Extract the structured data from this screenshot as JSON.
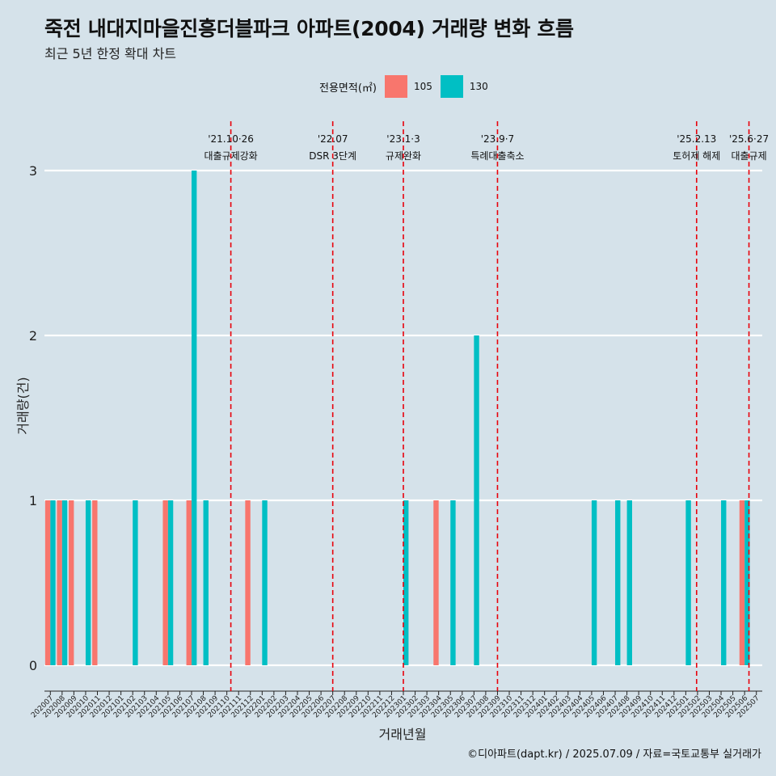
{
  "title": "죽전 내대지마을진흥더블파크 아파트(2004) 거래량 변화 흐름",
  "subtitle": "최근 5년 한정 확대 차트",
  "caption": "©디아파트(dapt.kr) / 2025.07.09 / 자료=국토교통부 실거래가",
  "legend": {
    "title": "전용면적(㎡)",
    "items": [
      {
        "label": "105",
        "color": "#F8766D"
      },
      {
        "label": "130",
        "color": "#00BFC4"
      }
    ]
  },
  "chart_data": {
    "type": "bar",
    "xlabel": "거래년월",
    "ylabel": "거래량(건)",
    "ylim": [
      0,
      3
    ],
    "yticks": [
      "0",
      "1",
      "2",
      "3"
    ],
    "grid": true,
    "legend_position": "top",
    "categories": [
      "202007",
      "202008",
      "202009",
      "202010",
      "202011",
      "202012",
      "202101",
      "202102",
      "202103",
      "202104",
      "202105",
      "202106",
      "202107",
      "202108",
      "202109",
      "202110",
      "202111",
      "202112",
      "202201",
      "202202",
      "202203",
      "202204",
      "202205",
      "202206",
      "202207",
      "202208",
      "202209",
      "202210",
      "202211",
      "202212",
      "202301",
      "202302",
      "202303",
      "202304",
      "202305",
      "202306",
      "202307",
      "202308",
      "202309",
      "202310",
      "202311",
      "202312",
      "202401",
      "202402",
      "202403",
      "202404",
      "202405",
      "202406",
      "202407",
      "202408",
      "202409",
      "202410",
      "202411",
      "202412",
      "202501",
      "202502",
      "202503",
      "202504",
      "202505",
      "202506",
      "202507"
    ],
    "series": [
      {
        "name": "105",
        "color": "#F8766D",
        "values": [
          1,
          1,
          1,
          0,
          1,
          0,
          0,
          0,
          0,
          0,
          1,
          0,
          1,
          0,
          0,
          0,
          0,
          1,
          0,
          0,
          0,
          0,
          0,
          0,
          0,
          0,
          0,
          0,
          0,
          0,
          0,
          0,
          0,
          1,
          0,
          0,
          0,
          0,
          0,
          0,
          0,
          0,
          0,
          0,
          0,
          0,
          0,
          0,
          0,
          0,
          0,
          0,
          0,
          0,
          0,
          0,
          0,
          0,
          0,
          1,
          0
        ]
      },
      {
        "name": "130",
        "color": "#00BFC4",
        "values": [
          1,
          1,
          0,
          1,
          0,
          0,
          0,
          1,
          0,
          0,
          1,
          0,
          3,
          1,
          0,
          0,
          0,
          0,
          1,
          0,
          0,
          0,
          0,
          0,
          0,
          0,
          0,
          0,
          0,
          0,
          1,
          0,
          0,
          0,
          1,
          0,
          2,
          0,
          0,
          0,
          0,
          0,
          0,
          0,
          0,
          0,
          1,
          0,
          1,
          1,
          0,
          0,
          0,
          0,
          1,
          0,
          0,
          1,
          0,
          1,
          0
        ]
      }
    ],
    "annotations": [
      {
        "date": "'21.10·26",
        "label": "대출규제강화",
        "month": "202110",
        "offset": 0.84
      },
      {
        "date": "'22.07",
        "label": "DSR 3단계",
        "month": "202207",
        "offset": 0.5
      },
      {
        "date": "'23.1·3",
        "label": "규제완화",
        "month": "202301",
        "offset": 0.5
      },
      {
        "date": "'23.9·7",
        "label": "특례대출축소",
        "month": "202309",
        "offset": 0.5
      },
      {
        "date": "'25.2.13",
        "label": "토허제 해제",
        "month": "202502",
        "offset": 0.42
      },
      {
        "date": "'25.6·27",
        "label": "대출규제",
        "month": "202506",
        "offset": 0.87
      }
    ]
  }
}
